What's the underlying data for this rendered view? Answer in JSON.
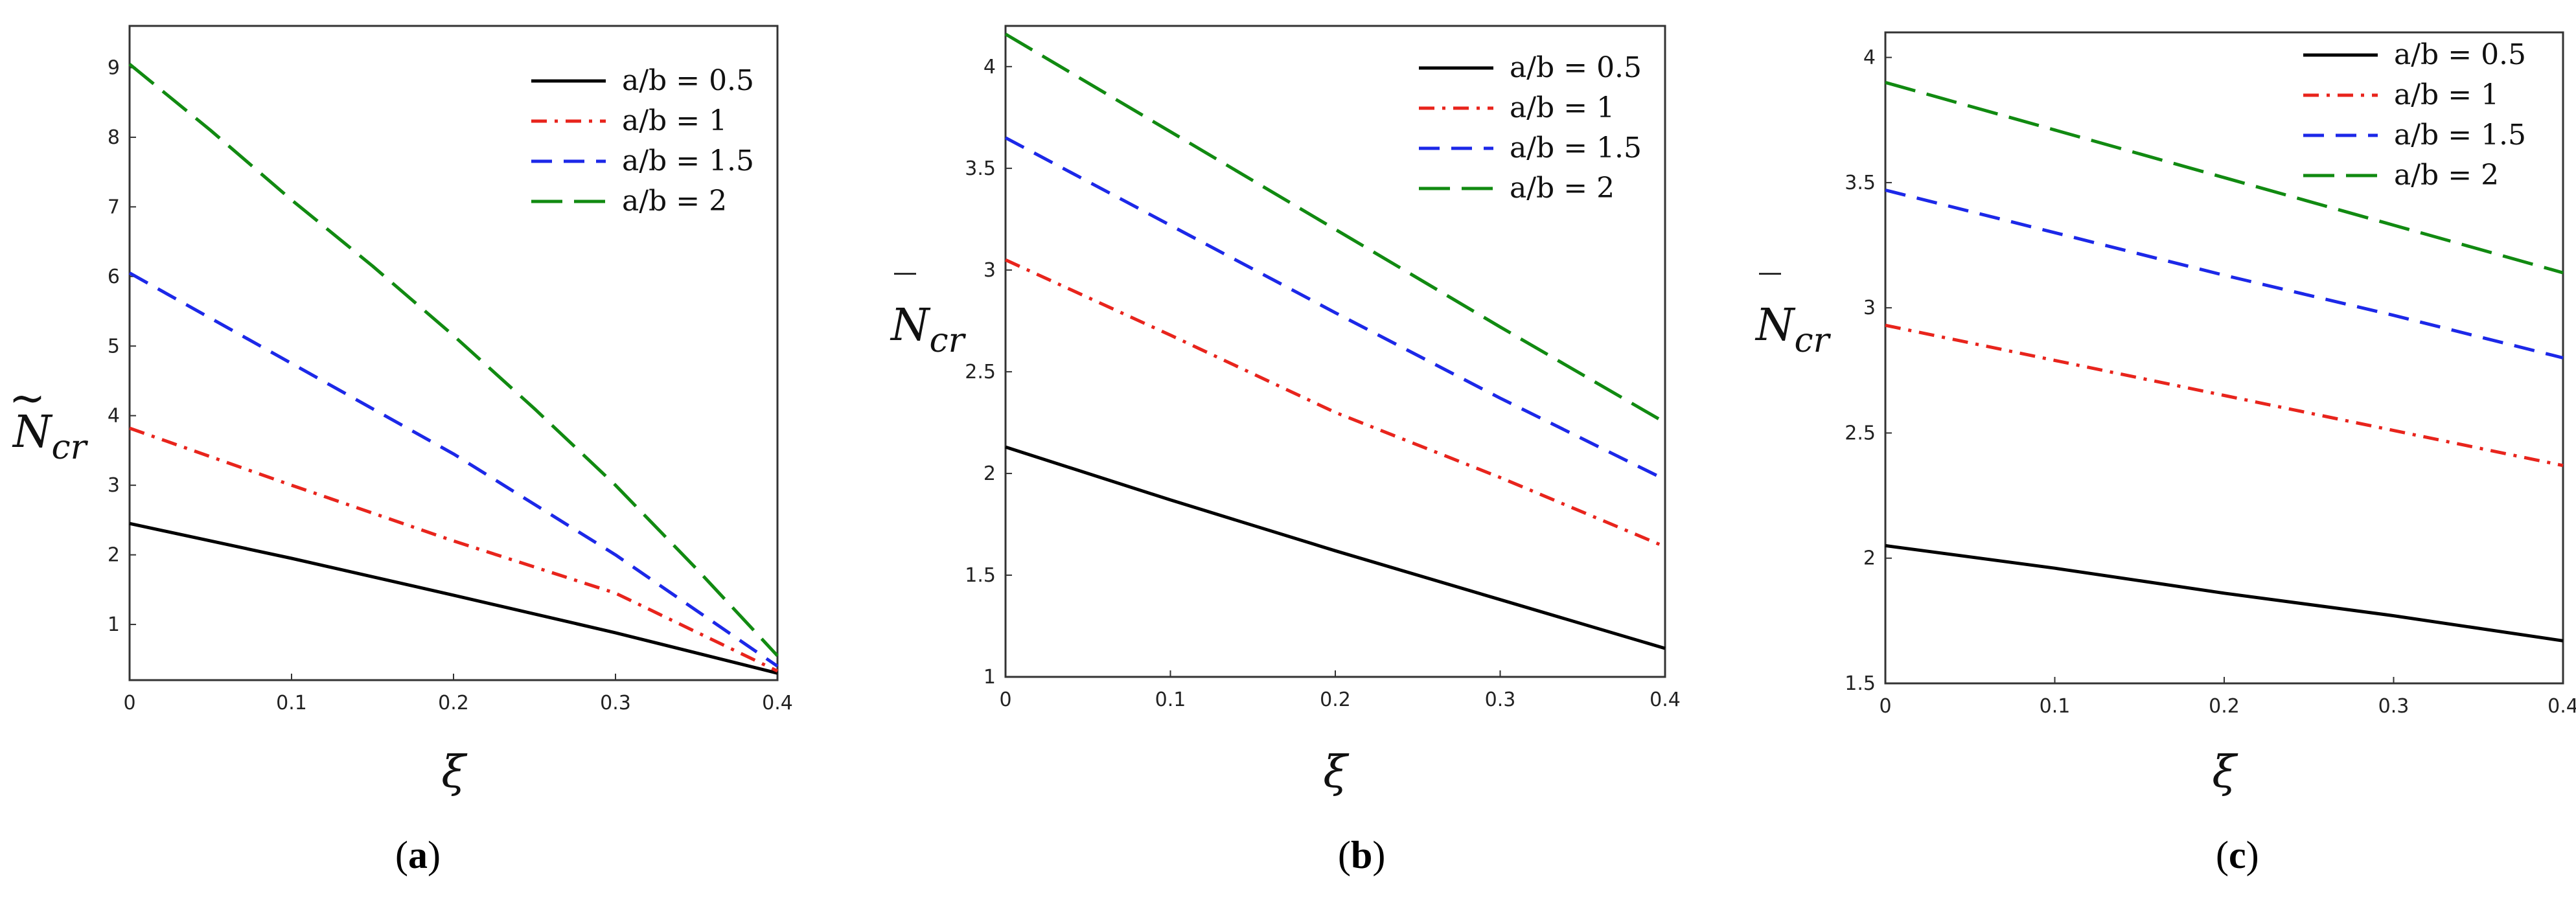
{
  "panels": [
    {
      "caption_open": "(",
      "caption_letter": "a",
      "caption_close": ")",
      "chart_data": {
        "type": "line",
        "ylabel_base": "N",
        "ylabel_accent": "~",
        "ylabel_sub": "cr",
        "xlabel": "ξ",
        "xlim": [
          0,
          0.4
        ],
        "ylim": [
          0.2,
          9.6
        ],
        "xticks": [
          "0",
          "0.1",
          "0.2",
          "0.3",
          "0.4"
        ],
        "xtick_values": [
          0,
          0.1,
          0.2,
          0.3,
          0.4
        ],
        "yticks": [
          "1",
          "2",
          "3",
          "4",
          "5",
          "6",
          "7",
          "8",
          "9"
        ],
        "ytick_values": [
          1,
          2,
          3,
          4,
          5,
          6,
          7,
          8,
          9
        ],
        "series": [
          {
            "name": "a/b = 0.5",
            "color": "#000000",
            "dash": "solid",
            "x": [
              0,
              0.1,
              0.2,
              0.3,
              0.4
            ],
            "y": [
              2.45,
              1.95,
              1.42,
              0.88,
              0.3
            ]
          },
          {
            "name": "a/b = 1",
            "color": "#e8241c",
            "dash": "dashdot",
            "x": [
              0,
              0.1,
              0.2,
              0.3,
              0.4
            ],
            "y": [
              3.82,
              3.0,
              2.2,
              1.45,
              0.33
            ]
          },
          {
            "name": "a/b = 1.5",
            "color": "#1c28e8",
            "dash": "dash",
            "x": [
              0,
              0.1,
              0.2,
              0.3,
              0.4
            ],
            "y": [
              6.05,
              4.75,
              3.45,
              2.0,
              0.4
            ]
          },
          {
            "name": "a/b = 2",
            "color": "#118a11",
            "dash": "longdash",
            "x": [
              0,
              0.05,
              0.1,
              0.15,
              0.2,
              0.25,
              0.3,
              0.35,
              0.4
            ],
            "y": [
              9.05,
              8.1,
              7.1,
              6.15,
              5.15,
              4.1,
              3.0,
              1.8,
              0.55
            ]
          }
        ]
      }
    },
    {
      "caption_open": "(",
      "caption_letter": "b",
      "caption_close": ")",
      "chart_data": {
        "type": "line",
        "ylabel_base": "N",
        "ylabel_accent": "‾",
        "ylabel_sub": "cr",
        "xlabel": "ξ",
        "xlim": [
          0,
          0.4
        ],
        "ylim": [
          1,
          4.2
        ],
        "xticks": [
          "0",
          "0.1",
          "0.2",
          "0.3",
          "0.4"
        ],
        "xtick_values": [
          0,
          0.1,
          0.2,
          0.3,
          0.4
        ],
        "yticks": [
          "1",
          "1.5",
          "2",
          "2.5",
          "3",
          "3.5",
          "4"
        ],
        "ytick_values": [
          1,
          1.5,
          2,
          2.5,
          3,
          3.5,
          4
        ],
        "series": [
          {
            "name": "a/b = 0.5",
            "color": "#000000",
            "dash": "solid",
            "x": [
              0,
              0.1,
              0.2,
              0.3,
              0.4
            ],
            "y": [
              2.13,
              1.87,
              1.62,
              1.38,
              1.14
            ]
          },
          {
            "name": "a/b = 1",
            "color": "#e8241c",
            "dash": "dashdot",
            "x": [
              0,
              0.1,
              0.2,
              0.3,
              0.4
            ],
            "y": [
              3.05,
              2.68,
              2.3,
              1.98,
              1.64
            ]
          },
          {
            "name": "a/b = 1.5",
            "color": "#1c28e8",
            "dash": "dash",
            "x": [
              0,
              0.1,
              0.2,
              0.3,
              0.4
            ],
            "y": [
              3.65,
              3.22,
              2.79,
              2.37,
              1.97
            ]
          },
          {
            "name": "a/b = 2",
            "color": "#118a11",
            "dash": "longdash",
            "x": [
              0,
              0.1,
              0.2,
              0.3,
              0.4
            ],
            "y": [
              4.16,
              3.68,
              3.2,
              2.72,
              2.25
            ]
          }
        ]
      }
    },
    {
      "caption_open": "(",
      "caption_letter": "c",
      "caption_close": ")",
      "chart_data": {
        "type": "line",
        "ylabel_base": "N",
        "ylabel_accent": "‾",
        "ylabel_sub": "cr",
        "xlabel": "ξ",
        "xlim": [
          0,
          0.4
        ],
        "ylim": [
          1.5,
          4.1
        ],
        "xticks": [
          "0",
          "0.1",
          "0.2",
          "0.3",
          "0.4"
        ],
        "xtick_values": [
          0,
          0.1,
          0.2,
          0.3,
          0.4
        ],
        "yticks": [
          "1.5",
          "2",
          "2.5",
          "3",
          "3.5",
          "4"
        ],
        "ytick_values": [
          1.5,
          2,
          2.5,
          3,
          3.5,
          4
        ],
        "series": [
          {
            "name": "a/b = 0.5",
            "color": "#000000",
            "dash": "solid",
            "x": [
              0,
              0.1,
              0.2,
              0.3,
              0.4
            ],
            "y": [
              2.05,
              1.96,
              1.86,
              1.77,
              1.67
            ]
          },
          {
            "name": "a/b = 1",
            "color": "#e8241c",
            "dash": "dashdot",
            "x": [
              0,
              0.1,
              0.2,
              0.3,
              0.4
            ],
            "y": [
              2.93,
              2.79,
              2.65,
              2.51,
              2.37
            ]
          },
          {
            "name": "a/b = 1.5",
            "color": "#1c28e8",
            "dash": "dash",
            "x": [
              0,
              0.1,
              0.2,
              0.3,
              0.4
            ],
            "y": [
              3.47,
              3.3,
              3.13,
              2.97,
              2.8
            ]
          },
          {
            "name": "a/b = 2",
            "color": "#118a11",
            "dash": "longdash",
            "x": [
              0,
              0.1,
              0.2,
              0.3,
              0.4
            ],
            "y": [
              3.9,
              3.71,
              3.52,
              3.33,
              3.14
            ]
          }
        ]
      }
    }
  ]
}
